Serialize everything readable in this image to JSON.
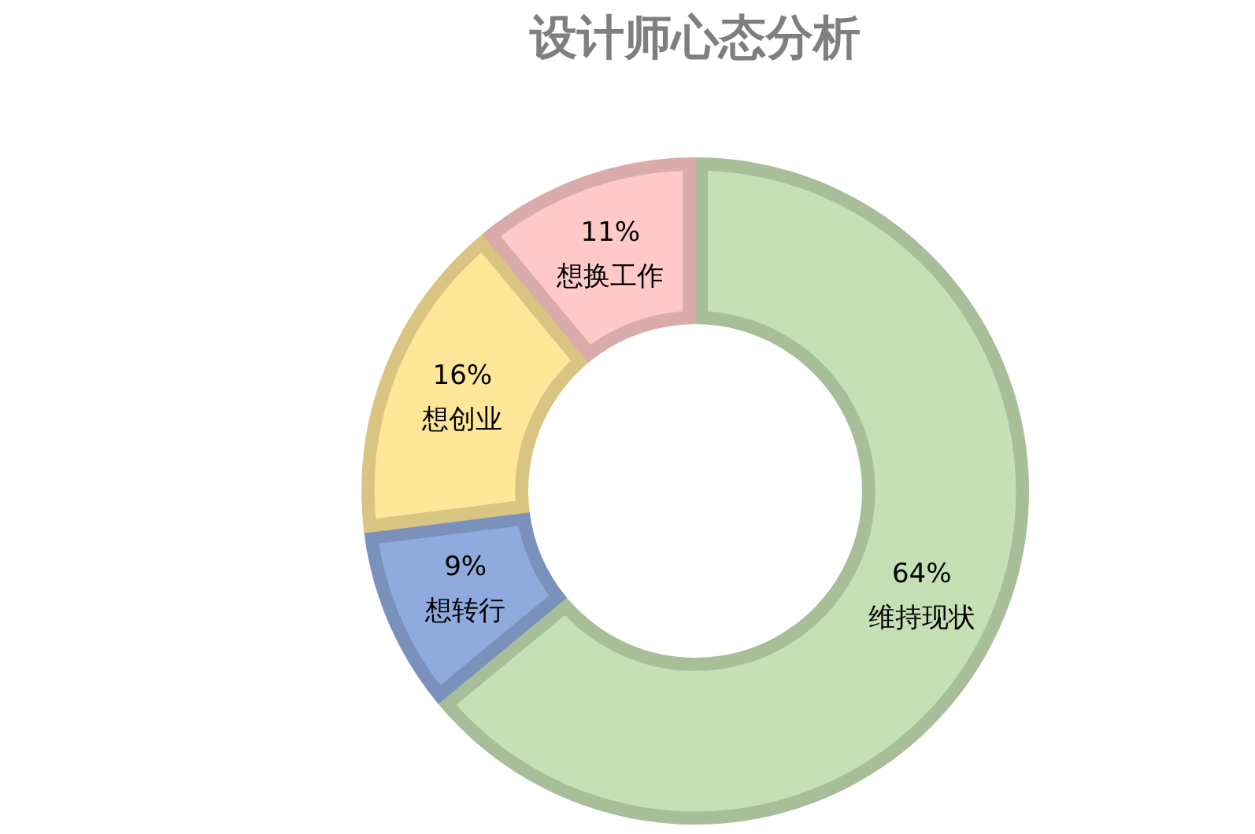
{
  "chart_data": {
    "type": "donut",
    "title": "设计师心态分析",
    "categories": [
      "维持现状",
      "想转行",
      "想创业",
      "想换工作"
    ],
    "values": [
      64,
      9,
      16,
      11
    ],
    "value_labels": [
      "64%",
      "9%",
      "16%",
      "11%"
    ],
    "colors": [
      "#c5e0b4",
      "#8faadc",
      "#ffe699",
      "#ffc9c9"
    ],
    "legend": false
  }
}
